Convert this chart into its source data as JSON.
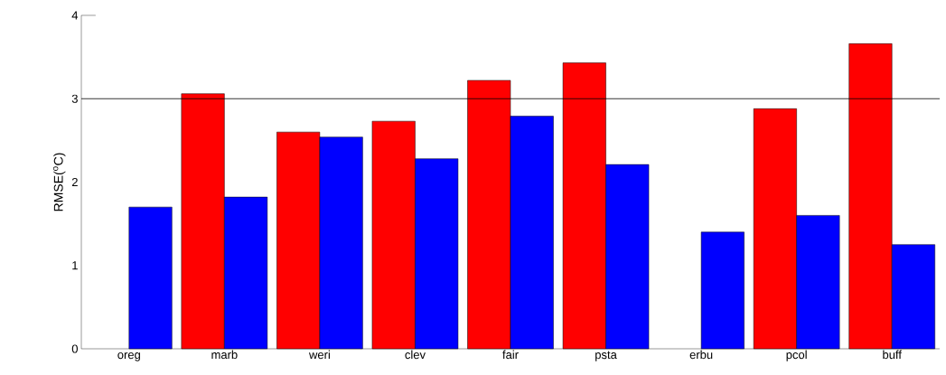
{
  "chart_data": {
    "type": "bar",
    "ylabel": "RMSE($^{o}$C)",
    "categories": [
      "oreg",
      "marb",
      "weri",
      "clev",
      "fair",
      "psta",
      "erbu",
      "pcol",
      "buff"
    ],
    "series": [
      {
        "color": "#ff0000",
        "values": [
          null,
          3.06,
          2.6,
          2.73,
          3.22,
          3.43,
          null,
          2.88,
          3.66
        ]
      },
      {
        "color": "#0000ff",
        "values": [
          1.7,
          1.82,
          2.54,
          2.28,
          2.79,
          2.21,
          1.4,
          1.6,
          1.25
        ]
      }
    ],
    "ylim": [
      0,
      4
    ],
    "yticks": [
      0,
      1,
      2,
      3,
      4
    ],
    "ref_lines": [
      {
        "axis": "y",
        "value": 3,
        "color": "#000000"
      }
    ],
    "grid": false
  }
}
